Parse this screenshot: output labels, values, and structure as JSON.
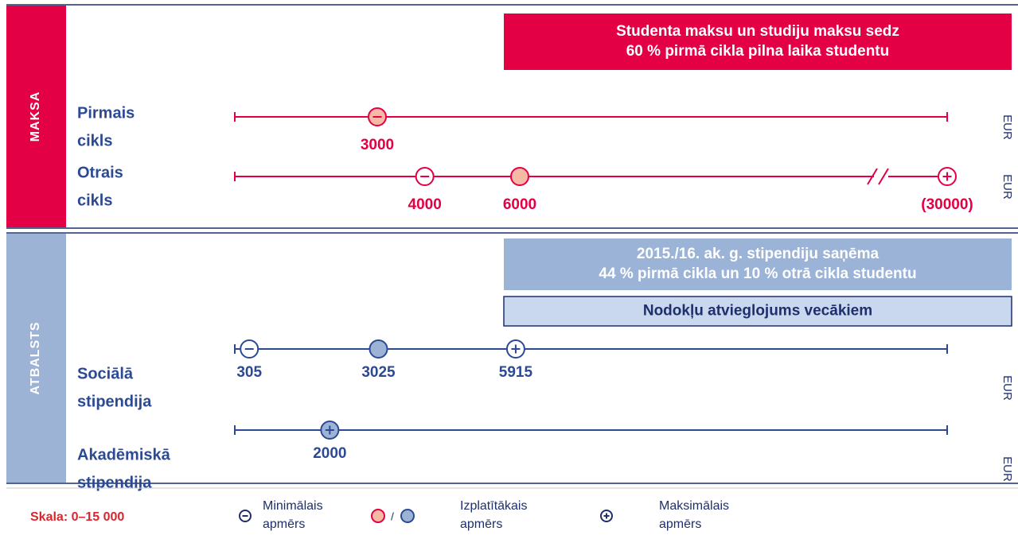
{
  "chart_data": {
    "type": "range",
    "xlim": [
      0,
      15000
    ],
    "unit": "EUR",
    "scale_label": "Skala: 0–15 000",
    "sections": [
      {
        "name": "MAKSA",
        "color": "#e30045",
        "text_color": "#e30045",
        "banners": [
          {
            "style": "dark",
            "color": "#e30045",
            "lines": [
              "Studenta maksu un studiju maksu sedz",
              "60 % pirmā cikla pilna laika studentu"
            ]
          }
        ],
        "rows": [
          {
            "label": [
              "Pirmais",
              "cikls"
            ],
            "points": [
              {
                "kind": "min",
                "value": 3000,
                "filled": true
              }
            ]
          },
          {
            "label": [
              "Otrais",
              "cikls"
            ],
            "axis_break": true,
            "points": [
              {
                "kind": "min",
                "value": 4000
              },
              {
                "kind": "typical",
                "value": 6000
              },
              {
                "kind": "max",
                "value": 30000,
                "label": "(30000)"
              }
            ]
          }
        ]
      },
      {
        "name": "ATBALSTS",
        "color": "#9db3d6",
        "text_color": "#2c4a94",
        "banners": [
          {
            "style": "dark",
            "color": "#9bb3d7",
            "lines": [
              "2015./16. ak. g. stipendiju saņēma",
              "44 % pirmā cikla un 10 % otrā cikla studentu"
            ]
          },
          {
            "style": "light",
            "color": "#c9d8ef",
            "lines": [
              "Nodokļu atvieglojums vecākiem"
            ]
          }
        ],
        "rows": [
          {
            "label": [
              "Sociālā",
              "stipendija"
            ],
            "points": [
              {
                "kind": "min",
                "value": 305
              },
              {
                "kind": "typical",
                "value": 3025
              },
              {
                "kind": "max",
                "value": 5915
              }
            ]
          },
          {
            "label": [
              "Akadēmiskā",
              "stipendija"
            ],
            "points": [
              {
                "kind": "max",
                "value": 2000,
                "filled": true
              }
            ]
          }
        ]
      }
    ],
    "legend": [
      {
        "kind": "min",
        "label": [
          "Minimālais",
          "apmērs"
        ]
      },
      {
        "kind": "typical",
        "separator": "/",
        "label": [
          "Izplatītākais",
          "apmērs"
        ]
      },
      {
        "kind": "max",
        "label": [
          "Maksimālais",
          "apmērs"
        ]
      }
    ]
  }
}
